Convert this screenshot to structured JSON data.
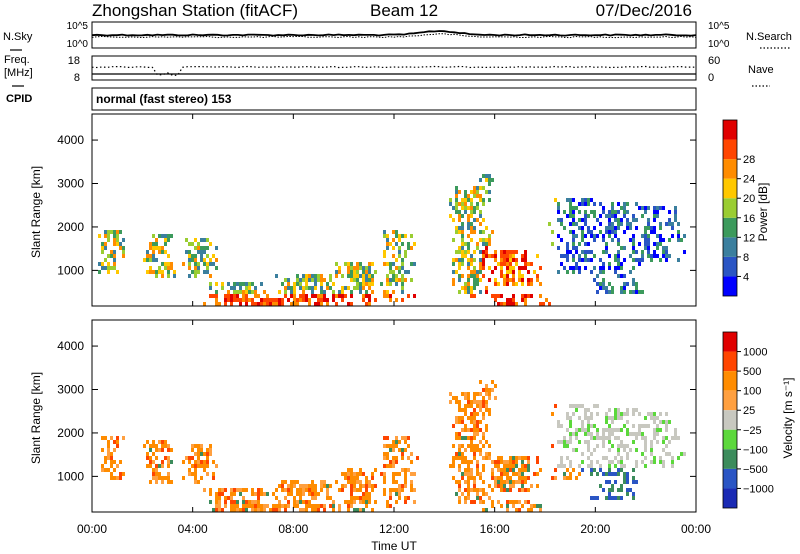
{
  "header": {
    "station": "Zhongshan Station (fitACF)",
    "beam": "Beam 12",
    "date": "07/Dec/2016"
  },
  "panels": {
    "nsky": {
      "left_label": "N.Sky",
      "right_label": "N.Search",
      "left_ticks": [
        "10^5",
        "10^0"
      ],
      "right_ticks": [
        "10^5",
        "10^0"
      ]
    },
    "freq": {
      "left_label_1": "Freq.",
      "left_label_2": "[MHz]",
      "right_label": "Nave",
      "left_ticks": [
        "18",
        "8"
      ],
      "right_ticks": [
        "60",
        "0"
      ]
    },
    "cpid": {
      "label": "CPID",
      "text": "normal (fast stereo) 153"
    }
  },
  "x_ticks": [
    "00:00",
    "04:00",
    "08:00",
    "12:00",
    "16:00",
    "20:00",
    "00:00"
  ],
  "colors": {
    "power_scale": [
      "#0000ff",
      "#2a55c4",
      "#3b7f9e",
      "#3c9a5c",
      "#9acd32",
      "#ffc800",
      "#ff8c00",
      "#ff4500",
      "#e00000"
    ],
    "velocity_scale": [
      "#e00000",
      "#ff4500",
      "#ff8c00",
      "#ffa040",
      "#c8c8c0",
      "#5cd83c",
      "#3c8c5c",
      "#2a55c4",
      "#1a2ab4"
    ]
  },
  "chart_data": [
    {
      "type": "heatmap",
      "title": "Power",
      "xlabel": "Time UT",
      "ylabel": "Slant Range [km]",
      "y_ticks": [
        "1000",
        "2000",
        "3000",
        "4000"
      ],
      "ylim": [
        180,
        4600
      ],
      "xlim_hours": [
        0,
        24
      ],
      "colorbar": {
        "label": "Power [dB]",
        "ticks": [
          "4",
          "8",
          "12",
          "16",
          "20",
          "24",
          "28"
        ],
        "range": [
          0,
          30
        ]
      }
    },
    {
      "type": "heatmap",
      "title": "Velocity",
      "xlabel": "Time UT",
      "ylabel": "Slant Range [km]",
      "y_ticks": [
        "1000",
        "2000",
        "3000",
        "4000"
      ],
      "ylim": [
        180,
        4600
      ],
      "xlim_hours": [
        0,
        24
      ],
      "colorbar": {
        "label": "Velocity [m s⁻¹]",
        "ticks": [
          "1000",
          "500",
          "100",
          "25",
          "−25",
          "−100",
          "−500",
          "−1000"
        ]
      }
    }
  ],
  "xlabel": "Time UT"
}
